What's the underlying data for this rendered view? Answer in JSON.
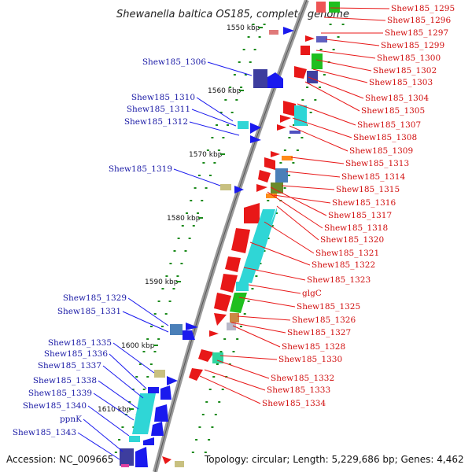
{
  "title": "Shewanella baltica OS185, complete genome",
  "footer": {
    "accession": "Accession: NC_009665",
    "topology": "Topology: circular; Length: 5,229,686 bp; Genes: 4,462"
  },
  "kbp_ticks": [
    "1550 kbp",
    "1560 kbp",
    "1570 kbp",
    "1580 kbp",
    "1590 kbp",
    "1600 kbp",
    "1610 kbp"
  ],
  "left_labels": [
    "Shew185_1306",
    "Shew185_1310",
    "Shew185_1311",
    "Shew185_1312",
    "Shew185_1319",
    "Shew185_1329",
    "Shew185_1331",
    "Shew185_1335",
    "Shew185_1336",
    "Shew185_1337",
    "Shew185_1338",
    "Shew185_1339",
    "Shew185_1340",
    "ppnK",
    "Shew185_1343"
  ],
  "right_labels": [
    "Shew185_1295",
    "Shew185_1296",
    "Shew185_1297",
    "Shew185_1299",
    "Shew185_1300",
    "Shew185_1302",
    "Shew185_1303",
    "Shew185_1304",
    "Shew185_1305",
    "Shew185_1307",
    "Shew185_1308",
    "Shew185_1309",
    "Shew185_1313",
    "Shew185_1314",
    "Shew185_1315",
    "Shew185_1316",
    "Shew185_1317",
    "Shew185_1318",
    "Shew185_1320",
    "Shew185_1321",
    "Shew185_1322",
    "Shew185_1323",
    "glgC",
    "Shew185_1325",
    "Shew185_1326",
    "Shew185_1327",
    "Shew185_1328",
    "Shew185_1330",
    "Shew185_1332",
    "Shew185_1333",
    "Shew185_1334"
  ],
  "colors": {
    "forward_strand": "#e81818",
    "reverse_strand": "#1a1aee",
    "backbone": "#9a9a9a",
    "tick_marks": "#1a8a1a",
    "left_labels": "#1a1aa6",
    "right_labels": "#d10f0f"
  }
}
